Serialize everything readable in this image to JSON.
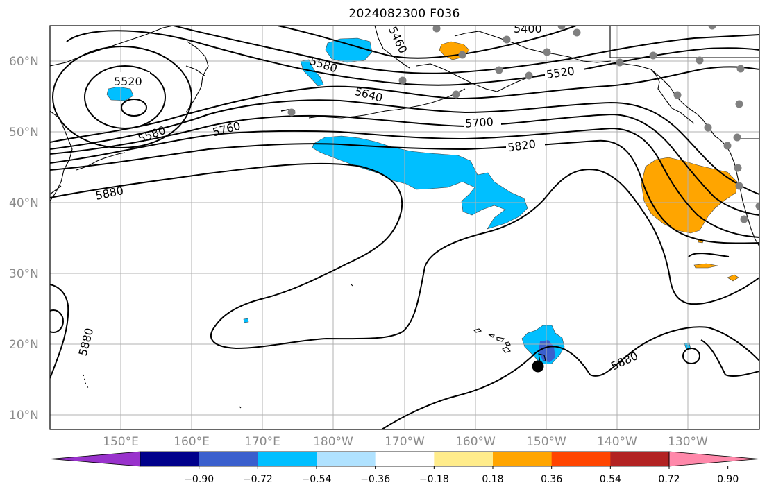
{
  "title": "2024082300 F036",
  "lat_labels": [
    "60°N",
    "50°N",
    "40°N",
    "30°N",
    "20°N",
    "10°N"
  ],
  "lon_labels": [
    "150°E",
    "160°E",
    "170°E",
    "180°W",
    "170°W",
    "160°W",
    "150°W",
    "140°W",
    "130°W"
  ],
  "contour_labels": [
    "5400",
    "5460",
    "5520",
    "5520",
    "5580",
    "5580",
    "5640",
    "5700",
    "5760",
    "5820",
    "5880",
    "5880",
    "5880"
  ],
  "colorbar": {
    "ticks": [
      "−0.90",
      "−0.72",
      "−0.54",
      "−0.36",
      "−0.18",
      "0.18",
      "0.36",
      "0.54",
      "0.72",
      "0.90"
    ],
    "colors": [
      "#9932cc",
      "#00008b",
      "#3a5fcd",
      "#00bfff",
      "#b0e2ff",
      "#ffffff",
      "#ffec8b",
      "#ffa500",
      "#ff4500",
      "#b22222",
      "#ff88aa"
    ]
  },
  "colors": {
    "anomaly_blue": "#00bfff",
    "anomaly_orange": "#ffa500",
    "deep_blue": "#3a5fcd",
    "station_gray": "#808080",
    "grid_gray": "#b0b0b0"
  }
}
